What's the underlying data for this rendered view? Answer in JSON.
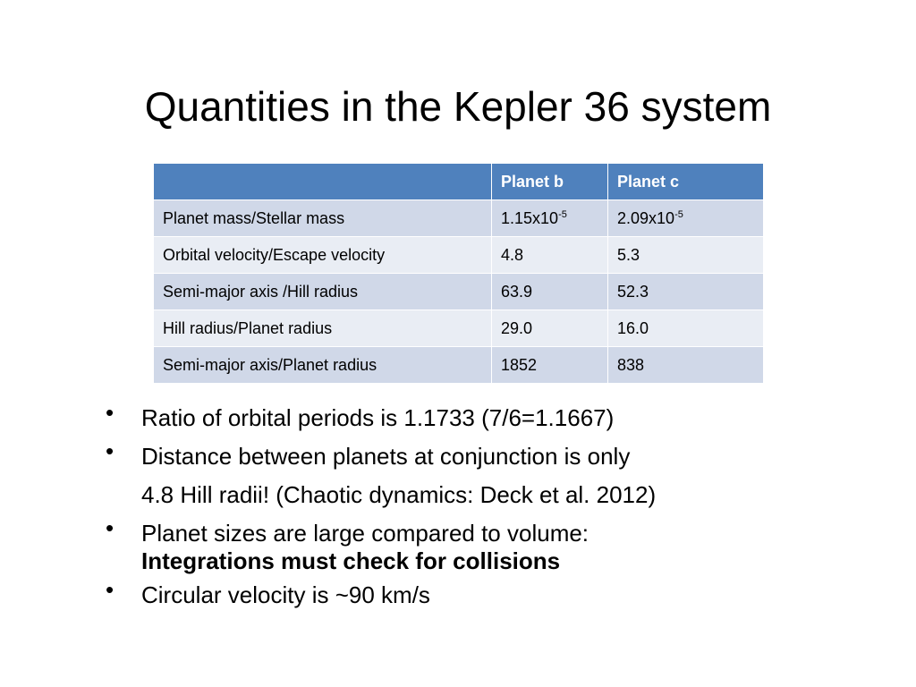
{
  "title": "Quantities in the Kepler 36 system",
  "table": {
    "header": [
      "Planet b",
      "Planet c"
    ],
    "rows": [
      {
        "label": "Planet mass/Stellar mass",
        "cells": [
          {
            "base": "1.15x10",
            "exp": "-5"
          },
          {
            "base": "2.09x10",
            "exp": "-5"
          }
        ]
      },
      {
        "label": "Orbital velocity/Escape velocity",
        "cells": [
          {
            "base": "4.8"
          },
          {
            "base": "5.3"
          }
        ]
      },
      {
        "label": "Semi-major axis /Hill radius",
        "cells": [
          {
            "base": "63.9"
          },
          {
            "base": "52.3"
          }
        ]
      },
      {
        "label": "Hill radius/Planet radius",
        "cells": [
          {
            "base": "29.0"
          },
          {
            "base": "16.0"
          }
        ]
      },
      {
        "label": "Semi-major axis/Planet radius",
        "cells": [
          {
            "base": "1852"
          },
          {
            "base": "838"
          }
        ]
      }
    ]
  },
  "bullets": [
    {
      "lines": [
        "Ratio of orbital periods is 1.1733  (7/6=1.1667)"
      ]
    },
    {
      "lines": [
        "Distance between planets at conjunction is only",
        "4.8 Hill radii!  (Chaotic dynamics:  Deck et al. 2012)"
      ]
    },
    {
      "lines": [
        "Planet sizes are large compared to volume:"
      ],
      "emphasis": "Integrations must check for collisions"
    },
    {
      "lines": [
        "Circular velocity is ~90 km/s"
      ]
    }
  ]
}
